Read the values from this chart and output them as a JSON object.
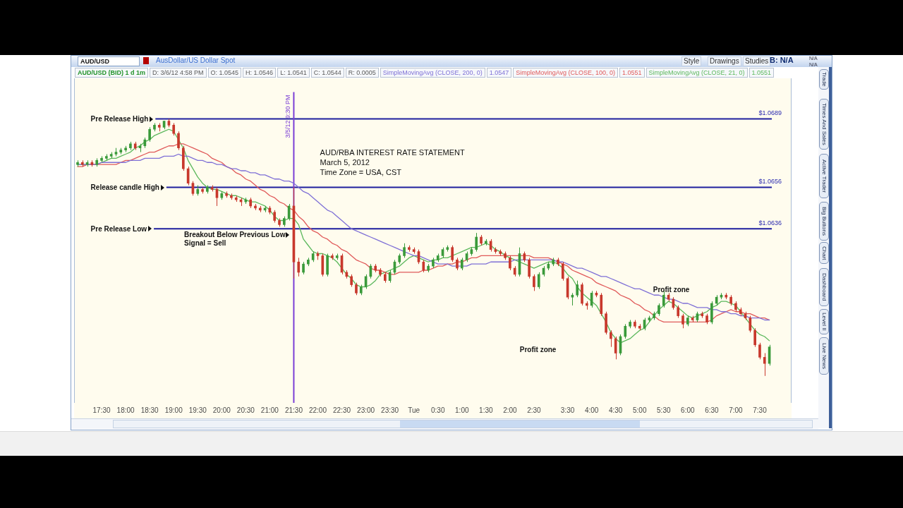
{
  "chart_data": {
    "type": "candlestick",
    "title": "AUD/RBA INTEREST RATE STATEMENT",
    "subtitle": "March 5, 2012",
    "categories": [
      null,
      null,
      null,
      null,
      null,
      "17:30",
      null,
      null,
      null,
      null,
      "18:00",
      null,
      null,
      null,
      null,
      "18:30",
      null,
      null,
      null,
      null,
      "19:00",
      null,
      null,
      null,
      null,
      "19:30",
      null,
      null,
      null,
      null,
      "20:00",
      null,
      null,
      null,
      null,
      "20:30",
      null,
      null,
      null,
      null,
      "21:00",
      null,
      null,
      null,
      null,
      "21:30",
      null,
      null,
      null,
      null,
      "22:00",
      null,
      null,
      null,
      null,
      "22:30",
      null,
      null,
      null,
      null,
      "23:00",
      null,
      null,
      null,
      null,
      "23:30",
      null,
      null,
      null,
      null,
      "Tue",
      null,
      null,
      null,
      null,
      "0:30",
      null,
      null,
      null,
      null,
      "1:00",
      null,
      null,
      null,
      null,
      "1:30",
      null,
      null,
      null,
      null,
      "2:00",
      null,
      null,
      null,
      null,
      "2:30",
      null,
      null,
      null,
      null,
      null,
      null,
      "3:30",
      null,
      null,
      null,
      null,
      "4:00",
      null,
      null,
      null,
      null,
      "4:30",
      null,
      null,
      null,
      null,
      "5:00",
      null,
      null,
      null,
      null,
      "5:30",
      null,
      null,
      null,
      null,
      "6:00",
      null,
      null,
      null,
      null,
      "6:30",
      null,
      null,
      null,
      null,
      "7:00",
      null,
      null,
      null,
      null,
      "7:30",
      null,
      null
    ],
    "ohlc": [
      [
        1.0667,
        1.0669,
        1.0666,
        1.0668
      ],
      [
        1.0668,
        1.0669,
        1.0666,
        1.0667
      ],
      [
        1.0667,
        1.0669,
        1.0666,
        1.0668
      ],
      [
        1.0668,
        1.0669,
        1.0666,
        1.0667
      ],
      [
        1.0667,
        1.067,
        1.0666,
        1.0669
      ],
      [
        1.0669,
        1.0671,
        1.0668,
        1.067
      ],
      [
        1.067,
        1.0672,
        1.0669,
        1.0671
      ],
      [
        1.0671,
        1.0673,
        1.067,
        1.0672
      ],
      [
        1.0672,
        1.0675,
        1.0671,
        1.0673
      ],
      [
        1.0673,
        1.0675,
        1.0672,
        1.0674
      ],
      [
        1.0674,
        1.0676,
        1.0673,
        1.0675
      ],
      [
        1.0675,
        1.0678,
        1.0674,
        1.0677
      ],
      [
        1.0677,
        1.0678,
        1.0674,
        1.0675
      ],
      [
        1.0675,
        1.0677,
        1.0673,
        1.0676
      ],
      [
        1.0676,
        1.068,
        1.0675,
        1.0679
      ],
      [
        1.0679,
        1.0685,
        1.0678,
        1.0684
      ],
      [
        1.0684,
        1.0687,
        1.0683,
        1.0686
      ],
      [
        1.0686,
        1.0687,
        1.0683,
        1.0685
      ],
      [
        1.0685,
        1.0688,
        1.0684,
        1.0688
      ],
      [
        1.0688,
        1.0689,
        1.0685,
        1.0686
      ],
      [
        1.0686,
        1.0687,
        1.0681,
        1.0682
      ],
      [
        1.0682,
        1.0683,
        1.0674,
        1.0675
      ],
      [
        1.0675,
        1.0676,
        1.0664,
        1.0665
      ],
      [
        1.0665,
        1.0666,
        1.0657,
        1.0658
      ],
      [
        1.0658,
        1.0659,
        1.0652,
        1.0653
      ],
      [
        1.0653,
        1.0657,
        1.0652,
        1.0655
      ],
      [
        1.0655,
        1.0656,
        1.0653,
        1.0654
      ],
      [
        1.0654,
        1.0657,
        1.0653,
        1.0656
      ],
      [
        1.0656,
        1.0657,
        1.0654,
        1.0655
      ],
      [
        1.0655,
        1.0656,
        1.0647,
        1.0651
      ],
      [
        1.0651,
        1.0654,
        1.065,
        1.0653
      ],
      [
        1.0653,
        1.0654,
        1.0651,
        1.0652
      ],
      [
        1.0652,
        1.0653,
        1.065,
        1.0651
      ],
      [
        1.0651,
        1.0652,
        1.0649,
        1.065
      ],
      [
        1.065,
        1.0651,
        1.0647,
        1.0649
      ],
      [
        1.0649,
        1.0651,
        1.0648,
        1.065
      ],
      [
        1.065,
        1.0651,
        1.0646,
        1.0647
      ],
      [
        1.0647,
        1.0648,
        1.0645,
        1.0646
      ],
      [
        1.0646,
        1.0647,
        1.0644,
        1.0645
      ],
      [
        1.0645,
        1.0647,
        1.0644,
        1.0646
      ],
      [
        1.0646,
        1.0647,
        1.0643,
        1.0644
      ],
      [
        1.0644,
        1.0645,
        1.0639,
        1.064
      ],
      [
        1.064,
        1.0641,
        1.0637,
        1.0638
      ],
      [
        1.0638,
        1.0642,
        1.0637,
        1.0641
      ],
      [
        1.0641,
        1.0648,
        1.064,
        1.0647
      ],
      [
        1.0647,
        1.0656,
        1.0612,
        1.062
      ],
      [
        1.062,
        1.0622,
        1.0613,
        1.0615
      ],
      [
        1.0615,
        1.062,
        1.0614,
        1.0619
      ],
      [
        1.0619,
        1.0622,
        1.0618,
        1.0621
      ],
      [
        1.0621,
        1.0625,
        1.062,
        1.0624
      ],
      [
        1.0624,
        1.0625,
        1.0621,
        1.0623
      ],
      [
        1.0623,
        1.0624,
        1.0613,
        1.0614
      ],
      [
        1.0614,
        1.0624,
        1.0613,
        1.0623
      ],
      [
        1.0623,
        1.0624,
        1.0621,
        1.0622
      ],
      [
        1.0622,
        1.0624,
        1.0621,
        1.0623
      ],
      [
        1.0623,
        1.0624,
        1.0614,
        1.0615
      ],
      [
        1.0615,
        1.0616,
        1.0612,
        1.0613
      ],
      [
        1.0613,
        1.0614,
        1.0608,
        1.0609
      ],
      [
        1.0609,
        1.061,
        1.0604,
        1.0605
      ],
      [
        1.0605,
        1.0609,
        1.0604,
        1.0608
      ],
      [
        1.0608,
        1.0614,
        1.0607,
        1.0613
      ],
      [
        1.0613,
        1.0619,
        1.0612,
        1.0618
      ],
      [
        1.0618,
        1.0619,
        1.0615,
        1.0616
      ],
      [
        1.0616,
        1.0617,
        1.0613,
        1.0614
      ],
      [
        1.0614,
        1.0615,
        1.061,
        1.0611
      ],
      [
        1.0611,
        1.0616,
        1.061,
        1.0615
      ],
      [
        1.0615,
        1.0621,
        1.0614,
        1.062
      ],
      [
        1.062,
        1.0624,
        1.0619,
        1.0623
      ],
      [
        1.0623,
        1.0629,
        1.0622,
        1.0627
      ],
      [
        1.0627,
        1.0628,
        1.0625,
        1.0626
      ],
      [
        1.0626,
        1.0627,
        1.0624,
        1.0625
      ],
      [
        1.0625,
        1.0626,
        1.0619,
        1.062
      ],
      [
        1.062,
        1.0621,
        1.0615,
        1.0616
      ],
      [
        1.0616,
        1.0619,
        1.0615,
        1.0618
      ],
      [
        1.0618,
        1.0622,
        1.0617,
        1.0621
      ],
      [
        1.0621,
        1.0624,
        1.062,
        1.0623
      ],
      [
        1.0623,
        1.0627,
        1.0622,
        1.0626
      ],
      [
        1.0626,
        1.0628,
        1.0625,
        1.0627
      ],
      [
        1.0627,
        1.0628,
        1.062,
        1.0621
      ],
      [
        1.0621,
        1.0622,
        1.0616,
        1.0617
      ],
      [
        1.0617,
        1.0622,
        1.0616,
        1.0621
      ],
      [
        1.0621,
        1.0625,
        1.062,
        1.0624
      ],
      [
        1.0624,
        1.0627,
        1.0623,
        1.0626
      ],
      [
        1.0626,
        1.0634,
        1.0625,
        1.0632
      ],
      [
        1.0632,
        1.0633,
        1.0628,
        1.0629
      ],
      [
        1.0629,
        1.0631,
        1.0628,
        1.063
      ],
      [
        1.063,
        1.0631,
        1.0625,
        1.0626
      ],
      [
        1.0626,
        1.0627,
        1.0624,
        1.0625
      ],
      [
        1.0625,
        1.0626,
        1.0623,
        1.0624
      ],
      [
        1.0624,
        1.0625,
        1.0621,
        1.0622
      ],
      [
        1.0622,
        1.0623,
        1.0616,
        1.0617
      ],
      [
        1.0617,
        1.0618,
        1.0613,
        1.0614
      ],
      [
        1.0614,
        1.0627,
        1.0613,
        1.0624
      ],
      [
        1.0624,
        1.0625,
        1.062,
        1.0621
      ],
      [
        1.0621,
        1.0622,
        1.0612,
        1.0613
      ],
      [
        1.0613,
        1.0614,
        1.0606,
        1.0608
      ],
      [
        1.0608,
        1.0615,
        1.0607,
        1.0614
      ],
      [
        1.0614,
        1.0618,
        1.0613,
        1.0617
      ],
      [
        1.0617,
        1.062,
        1.0616,
        1.0619
      ],
      [
        1.0619,
        1.0622,
        1.0618,
        1.0621
      ],
      [
        1.0621,
        1.0622,
        1.0618,
        1.0619
      ],
      [
        1.0619,
        1.062,
        1.0611,
        1.0612
      ],
      [
        1.0612,
        1.0613,
        1.0602,
        1.0603
      ],
      [
        1.0603,
        1.0605,
        1.0599,
        1.0604
      ],
      [
        1.0604,
        1.0611,
        1.0603,
        1.0609
      ],
      [
        1.0609,
        1.061,
        1.0599,
        1.06
      ],
      [
        1.06,
        1.0601,
        1.0597,
        1.0599
      ],
      [
        1.0599,
        1.0606,
        1.0598,
        1.0605
      ],
      [
        1.0605,
        1.0606,
        1.0603,
        1.0604
      ],
      [
        1.0604,
        1.0605,
        1.0594,
        1.0595
      ],
      [
        1.0595,
        1.0596,
        1.0585,
        1.0586
      ],
      [
        1.0586,
        1.0587,
        1.0579,
        1.0583
      ],
      [
        1.0583,
        1.0584,
        1.0573,
        1.0576
      ],
      [
        1.0576,
        1.0585,
        1.0575,
        1.0584
      ],
      [
        1.0584,
        1.059,
        1.0583,
        1.0589
      ],
      [
        1.0589,
        1.0592,
        1.0588,
        1.0591
      ],
      [
        1.0591,
        1.0592,
        1.0588,
        1.0589
      ],
      [
        1.0589,
        1.059,
        1.0587,
        1.0588
      ],
      [
        1.0588,
        1.0593,
        1.0587,
        1.0592
      ],
      [
        1.0592,
        1.0594,
        1.0591,
        1.0593
      ],
      [
        1.0593,
        1.0596,
        1.0592,
        1.0595
      ],
      [
        1.0595,
        1.06,
        1.0594,
        1.0599
      ],
      [
        1.0599,
        1.0606,
        1.0598,
        1.0604
      ],
      [
        1.0604,
        1.0605,
        1.0601,
        1.0602
      ],
      [
        1.0602,
        1.0603,
        1.0597,
        1.0598
      ],
      [
        1.0598,
        1.0599,
        1.0593,
        1.0594
      ],
      [
        1.0594,
        1.0595,
        1.0588,
        1.059
      ],
      [
        1.059,
        1.0594,
        1.0589,
        1.0593
      ],
      [
        1.0593,
        1.0594,
        1.0591,
        1.0592
      ],
      [
        1.0592,
        1.0596,
        1.0591,
        1.0595
      ],
      [
        1.0595,
        1.0596,
        1.0593,
        1.0594
      ],
      [
        1.0594,
        1.0595,
        1.059,
        1.0591
      ],
      [
        1.0591,
        1.0601,
        1.059,
        1.06
      ],
      [
        1.06,
        1.0604,
        1.0599,
        1.0603
      ],
      [
        1.0603,
        1.0605,
        1.0602,
        1.0604
      ],
      [
        1.0604,
        1.0605,
        1.0602,
        1.0603
      ],
      [
        1.0603,
        1.0604,
        1.0599,
        1.06
      ],
      [
        1.06,
        1.0601,
        1.0596,
        1.0597
      ],
      [
        1.0597,
        1.0598,
        1.0594,
        1.0595
      ],
      [
        1.0595,
        1.0596,
        1.0592,
        1.0593
      ],
      [
        1.0593,
        1.0594,
        1.0586,
        1.0587
      ],
      [
        1.0587,
        1.0588,
        1.0579,
        1.058
      ],
      [
        1.058,
        1.0581,
        1.0573,
        1.0574
      ],
      [
        1.0574,
        1.0576,
        1.0565,
        1.0571
      ],
      [
        1.0571,
        1.058,
        1.057,
        1.0579
      ]
    ],
    "colors": [
      "#3a9a3a",
      "#c8382c",
      "#3a9a3a",
      "#c8382c",
      "#3a9a3a",
      "#3a9a3a",
      "#3a9a3a",
      "#3a9a3a",
      "#3a9a3a",
      "#3a9a3a",
      "#3a9a3a",
      "#3a9a3a",
      "#c8382c",
      "#3a9a3a",
      "#3a9a3a",
      "#3a9a3a",
      "#3a9a3a",
      "#c8382c",
      "#3a9a3a",
      "#c8382c",
      "#c8382c",
      "#c8382c",
      "#c8382c",
      "#c8382c",
      "#c8382c",
      "#3a9a3a",
      "#c8382c",
      "#3a9a3a",
      "#c8382c",
      "#c8382c",
      "#3a9a3a",
      "#c8382c",
      "#c8382c",
      "#c8382c",
      "#c8382c",
      "#3a9a3a",
      "#c8382c",
      "#c8382c",
      "#c8382c",
      "#3a9a3a",
      "#c8382c",
      "#c8382c",
      "#c8382c",
      "#3a9a3a",
      "#3a9a3a",
      "#c8382c",
      "#c8382c",
      "#3a9a3a",
      "#3a9a3a",
      "#3a9a3a",
      "#c8382c",
      "#c8382c",
      "#3a9a3a",
      "#c8382c",
      "#3a9a3a",
      "#c8382c",
      "#c8382c",
      "#c8382c",
      "#c8382c",
      "#3a9a3a",
      "#3a9a3a",
      "#3a9a3a",
      "#c8382c",
      "#c8382c",
      "#c8382c",
      "#3a9a3a",
      "#3a9a3a",
      "#3a9a3a",
      "#3a9a3a",
      "#c8382c",
      "#c8382c",
      "#c8382c",
      "#c8382c",
      "#3a9a3a",
      "#3a9a3a",
      "#3a9a3a",
      "#3a9a3a",
      "#3a9a3a",
      "#c8382c",
      "#c8382c",
      "#3a9a3a",
      "#3a9a3a",
      "#3a9a3a",
      "#3a9a3a",
      "#c8382c",
      "#3a9a3a",
      "#c8382c",
      "#c8382c",
      "#c8382c",
      "#c8382c",
      "#c8382c",
      "#c8382c",
      "#3a9a3a",
      "#c8382c",
      "#c8382c",
      "#c8382c",
      "#3a9a3a",
      "#3a9a3a",
      "#3a9a3a",
      "#3a9a3a",
      "#c8382c",
      "#c8382c",
      "#c8382c",
      "#3a9a3a",
      "#3a9a3a",
      "#c8382c",
      "#c8382c",
      "#3a9a3a",
      "#c8382c",
      "#c8382c",
      "#c8382c",
      "#c8382c",
      "#c8382c",
      "#3a9a3a",
      "#3a9a3a",
      "#3a9a3a",
      "#c8382c",
      "#c8382c",
      "#3a9a3a",
      "#3a9a3a",
      "#3a9a3a",
      "#3a9a3a",
      "#3a9a3a",
      "#c8382c",
      "#c8382c",
      "#c8382c",
      "#c8382c",
      "#3a9a3a",
      "#c8382c",
      "#3a9a3a",
      "#c8382c",
      "#c8382c",
      "#3a9a3a",
      "#3a9a3a",
      "#3a9a3a",
      "#c8382c",
      "#c8382c",
      "#c8382c",
      "#c8382c",
      "#c8382c",
      "#c8382c",
      "#c8382c",
      "#c8382c",
      "#c8382c",
      "#3a9a3a"
    ],
    "series": [
      {
        "name": "SimpleMovingAvg (CLOSE, 200, 0)",
        "type": "line",
        "color": "#7f70d6",
        "values": [
          1.0667,
          1.0667,
          1.0667,
          1.0667,
          1.0667,
          1.0668,
          1.0668,
          1.0668,
          1.0668,
          1.0668,
          1.0668,
          1.0669,
          1.0669,
          1.0669,
          1.067,
          1.067,
          1.067,
          1.067,
          1.0671,
          1.0671,
          1.0671,
          1.0672,
          1.0671,
          1.0671,
          1.067,
          1.0669,
          1.0669,
          1.0668,
          1.0668,
          1.0667,
          1.0667,
          1.0666,
          1.0665,
          1.0665,
          1.0664,
          1.0664,
          1.0663,
          1.0663,
          1.0662,
          1.0662,
          1.0661,
          1.066,
          1.066,
          1.0659,
          1.0659,
          1.0658,
          1.0656,
          1.0654,
          1.0653,
          1.0651,
          1.0649,
          1.0647,
          1.0645,
          1.0644,
          1.0642,
          1.064,
          1.0638,
          1.0636,
          1.0635,
          1.0634,
          1.0633,
          1.0632,
          1.0631,
          1.063,
          1.0629,
          1.0628,
          1.0627,
          1.0626,
          1.0625,
          1.0624,
          1.0623,
          1.0623,
          1.0622,
          1.0621,
          1.062,
          1.0619,
          1.0619,
          1.0619,
          1.0618,
          1.0618,
          1.0618,
          1.0618,
          1.0619,
          1.0619,
          1.0619,
          1.0619,
          1.062,
          1.062,
          1.062,
          1.062,
          1.062,
          1.0621,
          1.0621,
          1.0621,
          1.0621,
          1.0621,
          1.0621,
          1.0621,
          1.0621,
          1.0621,
          1.062,
          1.062,
          1.0619,
          1.0618,
          1.0617,
          1.0617,
          1.0616,
          1.0615,
          1.0614,
          1.0613,
          1.0613,
          1.0612,
          1.0611,
          1.061,
          1.0609,
          1.0608,
          1.0607,
          1.0607,
          1.0606,
          1.0605,
          1.0604,
          1.0604,
          1.0603,
          1.0602,
          1.0602,
          1.0601,
          1.06,
          1.06,
          1.0599,
          1.0598,
          1.0598,
          1.0598,
          1.0597,
          1.0597,
          1.0596,
          1.0596,
          1.0595,
          1.0595,
          1.0594,
          1.0594,
          1.0593,
          1.0593,
          1.0593,
          1.0592,
          1.0592
        ]
      },
      {
        "name": "SimpleMovingAvg (CLOSE, 100, 0)",
        "type": "line",
        "color": "#e05a5a",
        "values": [
          1.0666,
          1.0666,
          1.0667,
          1.0667,
          1.0667,
          1.0667,
          1.0667,
          1.0667,
          1.0667,
          1.0668,
          1.0669,
          1.0669,
          1.067,
          1.0671,
          1.0672,
          1.0673,
          1.0673,
          1.0674,
          1.0675,
          1.0676,
          1.0676,
          1.0677,
          1.0677,
          1.0676,
          1.0675,
          1.0674,
          1.0673,
          1.0672,
          1.067,
          1.0669,
          1.0668,
          1.0666,
          1.0665,
          1.0663,
          1.0662,
          1.066,
          1.0659,
          1.0657,
          1.0655,
          1.0654,
          1.0652,
          1.0651,
          1.0649,
          1.0648,
          1.0646,
          1.0645,
          1.0642,
          1.064,
          1.0637,
          1.0635,
          1.0634,
          1.0632,
          1.0631,
          1.0629,
          1.0628,
          1.0626,
          1.0625,
          1.0623,
          1.0621,
          1.062,
          1.0619,
          1.0617,
          1.0616,
          1.0616,
          1.0615,
          1.0614,
          1.0614,
          1.0615,
          1.0615,
          1.0615,
          1.0615,
          1.0615,
          1.0616,
          1.0616,
          1.0617,
          1.0618,
          1.0618,
          1.0619,
          1.0619,
          1.062,
          1.062,
          1.0621,
          1.0622,
          1.0622,
          1.0623,
          1.0623,
          1.0623,
          1.0623,
          1.0623,
          1.0623,
          1.0623,
          1.0623,
          1.0623,
          1.0623,
          1.0623,
          1.0622,
          1.0622,
          1.0622,
          1.0622,
          1.0621,
          1.062,
          1.0619,
          1.0618,
          1.0616,
          1.0615,
          1.0614,
          1.0613,
          1.0612,
          1.061,
          1.0609,
          1.0608,
          1.0607,
          1.0606,
          1.0604,
          1.0603,
          1.0602,
          1.06,
          1.0599,
          1.0597,
          1.0596,
          1.0594,
          1.0592,
          1.0591,
          1.0591,
          1.0591,
          1.0591,
          1.0591,
          1.0591,
          1.0591,
          1.0591,
          1.0591,
          1.0591,
          1.0592,
          1.0594,
          1.0595,
          1.0596,
          1.0597,
          1.0596,
          1.0596,
          1.0595,
          1.0595,
          1.0594,
          1.0593,
          1.0593,
          1.0592
        ]
      },
      {
        "name": "SimpleMovingAvg (CLOSE, 21, 0)",
        "type": "line",
        "color": "#5cb85c",
        "values": [
          1.0667,
          1.0667,
          1.0667,
          1.0667,
          1.0667,
          1.0668,
          1.0669,
          1.067,
          1.067,
          1.0671,
          1.0672,
          1.0673,
          1.0675,
          1.0676,
          1.0678,
          1.0679,
          1.0681,
          1.0682,
          1.0683,
          1.0684,
          1.0683,
          1.0679,
          1.0675,
          1.0669,
          1.0665,
          1.0661,
          1.0658,
          1.0656,
          1.0655,
          1.0655,
          1.0654,
          1.0653,
          1.0652,
          1.0652,
          1.0651,
          1.065,
          1.0649,
          1.0649,
          1.0648,
          1.0647,
          1.0645,
          1.0642,
          1.064,
          1.064,
          1.0641,
          1.0641,
          1.0638,
          1.0631,
          1.0628,
          1.0625,
          1.0624,
          1.0624,
          1.0623,
          1.0622,
          1.062,
          1.0617,
          1.0614,
          1.0612,
          1.0609,
          1.0608,
          1.0608,
          1.0609,
          1.0611,
          1.0614,
          1.0615,
          1.0616,
          1.0617,
          1.0618,
          1.062,
          1.0622,
          1.0623,
          1.0622,
          1.0621,
          1.062,
          1.0621,
          1.0621,
          1.0622,
          1.0622,
          1.0623,
          1.0624,
          1.0625,
          1.0626,
          1.0627,
          1.0627,
          1.0628,
          1.0629,
          1.0628,
          1.0626,
          1.0625,
          1.0623,
          1.0622,
          1.0621,
          1.062,
          1.0619,
          1.0618,
          1.0617,
          1.0618,
          1.0619,
          1.062,
          1.062,
          1.0619,
          1.0617,
          1.0614,
          1.0612,
          1.0608,
          1.0605,
          1.0603,
          1.0601,
          1.0599,
          1.0595,
          1.0591,
          1.0586,
          1.0583,
          1.0581,
          1.0582,
          1.0583,
          1.0585,
          1.0587,
          1.0588,
          1.0591,
          1.0594,
          1.0597,
          1.0599,
          1.0601,
          1.06,
          1.0598,
          1.0596,
          1.0594,
          1.0593,
          1.0594,
          1.0595,
          1.0596,
          1.0598,
          1.0599,
          1.0601,
          1.0601,
          1.06,
          1.0599,
          1.0596,
          1.0593,
          1.059,
          1.0587,
          1.0585,
          1.0584,
          1.0582
        ]
      }
    ],
    "ylim": [
      1.0552,
      1.0702
    ],
    "yticks": [
      {
        "value": 1.0636,
        "label": "$1.0636"
      },
      {
        "value": 1.0656,
        "label": "$1.0656"
      },
      {
        "value": 1.0689,
        "label": "$1.0689"
      }
    ],
    "legend": "top",
    "ref_lines": [
      {
        "axis": "y",
        "value": 1.0689,
        "label": "Pre Release High",
        "color": "#1e1e9e"
      },
      {
        "axis": "y",
        "value": 1.0656,
        "label": "Release candle High",
        "color": "#1e1e9e"
      },
      {
        "axis": "y",
        "value": 1.0636,
        "label": "Pre Release Low",
        "color": "#1e1e9e"
      },
      {
        "axis": "x",
        "value": "21:30",
        "label": "3/5/12 9:30 PM",
        "color": "#7b3fd6"
      }
    ],
    "annotations": [
      "Time Zone = USA, CST",
      "Profit zone",
      "Profit zone",
      "AUD/USD",
      "AusDollar/US Dollar Spot",
      "Style",
      "Drawings",
      "Studies",
      "B: N/A",
      "N/A",
      "N/A",
      "AUD/USD (BID) 1 d 1m",
      "D: 3/6/12 4:58 PM",
      "O: 1.0545",
      "H: 1.0546",
      "L: 1.0541",
      "C: 1.0544",
      "R: 0.0005",
      "1.0547",
      "1.0551",
      "1.0551",
      "Trade",
      "Times And Sales",
      "Active Trader",
      "Big Buttons",
      "Chart",
      "Dashboard",
      "Level II",
      "Live News",
      {
        "text": "Breakout Below Previous Low\nSignal = Sell",
        "x": "21:30",
        "y": 1.0636
      }
    ]
  }
}
